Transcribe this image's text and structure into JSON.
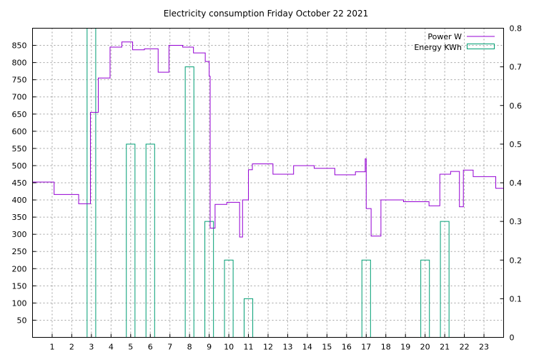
{
  "chart_data": {
    "type": "line",
    "title": "Electricity consumption Friday October 22 2021",
    "x_range": [
      0,
      24
    ],
    "x_ticks": [
      1,
      2,
      3,
      4,
      5,
      6,
      7,
      8,
      9,
      10,
      11,
      12,
      13,
      14,
      15,
      16,
      17,
      18,
      19,
      20,
      21,
      22,
      23
    ],
    "y_left_range": [
      0,
      900
    ],
    "y_left_ticks": [
      50,
      100,
      150,
      200,
      250,
      300,
      350,
      400,
      450,
      500,
      550,
      600,
      650,
      700,
      750,
      800,
      850
    ],
    "y_right_range": [
      0,
      0.8
    ],
    "y_right_ticks": [
      "0",
      "0.1",
      "0.2",
      "0.3",
      "0.4",
      "0.5",
      "0.6",
      "0.7",
      "0.8"
    ],
    "grid": true,
    "legend_placement": "top-right",
    "colors": {
      "power": "#9400d3",
      "energy": "#009e73"
    },
    "series": [
      {
        "name": "Power W",
        "kind": "step-line",
        "axis": "left",
        "points": [
          [
            0,
            452
          ],
          [
            1.1,
            452
          ],
          [
            1.1,
            416
          ],
          [
            2.35,
            416
          ],
          [
            2.35,
            389
          ],
          [
            2.95,
            389
          ],
          [
            2.95,
            655
          ],
          [
            3.35,
            655
          ],
          [
            3.35,
            755
          ],
          [
            3.95,
            755
          ],
          [
            3.95,
            845
          ],
          [
            4.55,
            845
          ],
          [
            4.55,
            860
          ],
          [
            5.1,
            860
          ],
          [
            5.1,
            837
          ],
          [
            5.7,
            837
          ],
          [
            5.7,
            840
          ],
          [
            6.4,
            840
          ],
          [
            6.4,
            772
          ],
          [
            6.95,
            772
          ],
          [
            6.95,
            850
          ],
          [
            7.65,
            850
          ],
          [
            7.65,
            845
          ],
          [
            8.2,
            845
          ],
          [
            8.2,
            828
          ],
          [
            8.8,
            828
          ],
          [
            8.8,
            803
          ],
          [
            9.0,
            803
          ],
          [
            9.0,
            760
          ],
          [
            9.05,
            760
          ],
          [
            9.05,
            318
          ],
          [
            9.3,
            318
          ],
          [
            9.3,
            387
          ],
          [
            9.9,
            387
          ],
          [
            9.9,
            393
          ],
          [
            10.55,
            393
          ],
          [
            10.55,
            292
          ],
          [
            10.7,
            292
          ],
          [
            10.7,
            400
          ],
          [
            11.0,
            400
          ],
          [
            11.0,
            488
          ],
          [
            11.2,
            488
          ],
          [
            11.2,
            505
          ],
          [
            12.25,
            505
          ],
          [
            12.25,
            475
          ],
          [
            13.3,
            475
          ],
          [
            13.3,
            500
          ],
          [
            14.35,
            500
          ],
          [
            14.35,
            492
          ],
          [
            15.4,
            492
          ],
          [
            15.4,
            473
          ],
          [
            16.45,
            473
          ],
          [
            16.45,
            482
          ],
          [
            16.95,
            482
          ],
          [
            16.95,
            520
          ],
          [
            17.0,
            520
          ],
          [
            17.0,
            375
          ],
          [
            17.25,
            375
          ],
          [
            17.25,
            295
          ],
          [
            17.75,
            295
          ],
          [
            17.75,
            400
          ],
          [
            18.9,
            400
          ],
          [
            18.9,
            395
          ],
          [
            20.2,
            395
          ],
          [
            20.2,
            383
          ],
          [
            20.75,
            383
          ],
          [
            20.75,
            475
          ],
          [
            21.3,
            475
          ],
          [
            21.3,
            483
          ],
          [
            21.75,
            483
          ],
          [
            21.75,
            380
          ],
          [
            21.95,
            380
          ],
          [
            21.95,
            487
          ],
          [
            22.45,
            487
          ],
          [
            22.45,
            468
          ],
          [
            23.6,
            468
          ],
          [
            23.6,
            434
          ],
          [
            24,
            434
          ]
        ]
      },
      {
        "name": "Energy KWh",
        "kind": "boxes",
        "axis": "right",
        "bars": [
          {
            "x": 3,
            "value": 0.8
          },
          {
            "x": 5,
            "value": 0.5
          },
          {
            "x": 6,
            "value": 0.5
          },
          {
            "x": 8,
            "value": 0.7
          },
          {
            "x": 9,
            "value": 0.3
          },
          {
            "x": 10,
            "value": 0.2
          },
          {
            "x": 11,
            "value": 0.1
          },
          {
            "x": 17,
            "value": 0.2
          },
          {
            "x": 20,
            "value": 0.2
          },
          {
            "x": 21,
            "value": 0.3
          }
        ]
      }
    ]
  }
}
